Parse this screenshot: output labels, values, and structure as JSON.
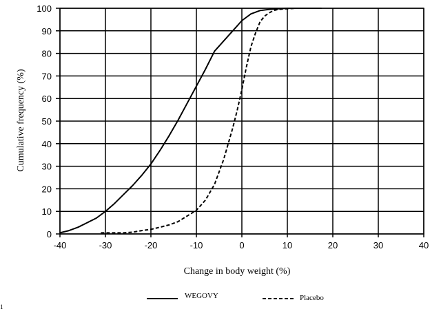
{
  "chart_data": {
    "type": "line",
    "xlabel": "Change in body weight (%)",
    "ylabel": "Cumulative frequency (%)",
    "xlim": [
      -40,
      40
    ],
    "ylim": [
      0,
      100
    ],
    "xticks": [
      -40,
      -30,
      -20,
      -10,
      0,
      10,
      20,
      30,
      40
    ],
    "yticks": [
      0,
      10,
      20,
      30,
      40,
      50,
      60,
      70,
      80,
      90,
      100
    ],
    "grid": true,
    "legend_position": "bottom",
    "series": [
      {
        "name": "WEGOVY",
        "style": "solid",
        "x": [
          -40,
          -38,
          -36,
          -34,
          -32,
          -30,
          -28,
          -26,
          -24,
          -22,
          -20,
          -18,
          -16,
          -14,
          -12,
          -10,
          -8,
          -6,
          -4,
          -2,
          0,
          2,
          4,
          6,
          8,
          10,
          12,
          14,
          16,
          17.5
        ],
        "y": [
          0.5,
          1.5,
          3,
          5,
          7,
          10,
          13.5,
          17.5,
          21.5,
          26,
          31,
          37,
          43.5,
          50.5,
          58,
          65.5,
          73,
          81,
          85.5,
          90,
          94.5,
          97.5,
          99,
          99.5,
          99.8,
          100,
          100,
          100,
          100,
          100
        ]
      },
      {
        "name": "Placebo",
        "style": "dashed",
        "x": [
          -31,
          -28,
          -26,
          -24,
          -22,
          -20,
          -18,
          -16,
          -14,
          -12,
          -10,
          -8,
          -6,
          -4,
          -3,
          -2,
          -1,
          0,
          1,
          2,
          3,
          4,
          5,
          6,
          7,
          8,
          10,
          12,
          14,
          17.5
        ],
        "y": [
          0.5,
          0.5,
          0.5,
          0.8,
          1.5,
          2,
          3,
          4,
          5.5,
          8,
          10.5,
          15,
          22,
          33,
          40,
          47,
          55,
          64,
          74,
          83,
          89,
          94,
          96.5,
          98,
          99,
          99.5,
          99.8,
          100,
          100,
          100
        ]
      }
    ]
  },
  "footnote": "1"
}
